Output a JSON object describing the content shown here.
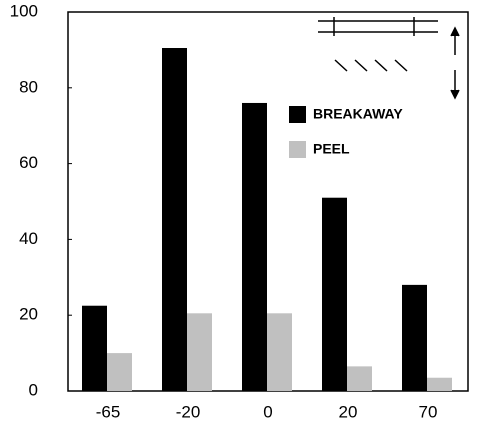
{
  "chart_data": {
    "type": "bar",
    "categories": [
      "-65",
      "-20",
      "0",
      "20",
      "70"
    ],
    "series": [
      {
        "name": "BREAKAWAY",
        "color": "#000000",
        "values": [
          22.5,
          90.5,
          76,
          51,
          28
        ]
      },
      {
        "name": "PEEL",
        "color": "#c0c0c0",
        "values": [
          10,
          20.5,
          20.5,
          6.5,
          3.5
        ]
      }
    ],
    "ylim": [
      0,
      100
    ],
    "yticks": [
      0,
      20,
      40,
      60,
      80,
      100
    ],
    "grid": false
  }
}
